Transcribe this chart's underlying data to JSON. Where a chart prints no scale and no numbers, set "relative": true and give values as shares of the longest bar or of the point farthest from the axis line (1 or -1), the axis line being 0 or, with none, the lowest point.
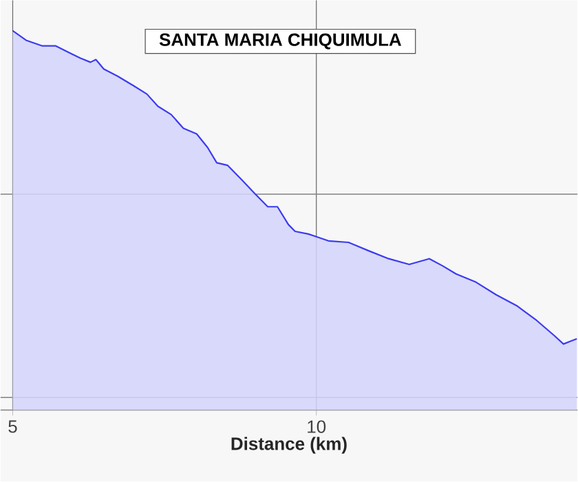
{
  "chart_data": {
    "type": "area",
    "title": "SANTA MARIA CHIQUIMULA",
    "xlabel": "Distance (km)",
    "relative": true,
    "color": "#3b3bf0",
    "grid": "x",
    "xlim": [
      4.8,
      14.3
    ],
    "xticks": [
      5,
      10
    ],
    "x": [
      5.0,
      5.22,
      5.49,
      5.71,
      5.93,
      6.11,
      6.28,
      6.37,
      6.5,
      6.73,
      6.99,
      7.21,
      7.39,
      7.61,
      7.81,
      8.03,
      8.21,
      8.36,
      8.54,
      8.76,
      8.98,
      9.2,
      9.36,
      9.54,
      9.65,
      9.87,
      10.0,
      10.2,
      10.53,
      10.86,
      11.19,
      11.53,
      11.86,
      12.08,
      12.3,
      12.63,
      12.96,
      13.3,
      13.63,
      13.92,
      14.07,
      14.18,
      14.29
    ],
    "values": [
      1.0,
      0.975,
      0.96,
      0.96,
      0.942,
      0.928,
      0.917,
      0.924,
      0.899,
      0.88,
      0.855,
      0.833,
      0.801,
      0.779,
      0.743,
      0.728,
      0.692,
      0.652,
      0.645,
      0.609,
      0.572,
      0.536,
      0.536,
      0.489,
      0.471,
      0.464,
      0.457,
      0.446,
      0.442,
      0.42,
      0.399,
      0.384,
      0.399,
      0.38,
      0.359,
      0.337,
      0.304,
      0.275,
      0.236,
      0.196,
      0.174,
      0.181,
      0.188
    ],
    "ref_lines": [
      {
        "axis": "y",
        "value": 0.569,
        "color": "#808080"
      },
      {
        "axis": "y",
        "value": 0.033,
        "color": "#808080"
      }
    ]
  }
}
